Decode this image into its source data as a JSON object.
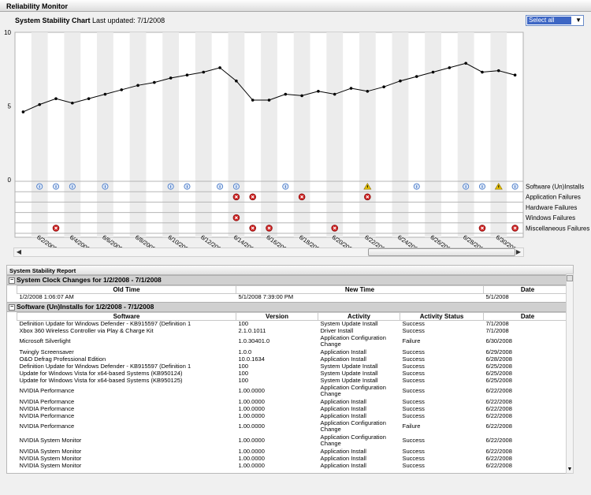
{
  "window": {
    "title": "Reliability Monitor"
  },
  "chart_header": {
    "title": "System Stability Chart",
    "updated": "Last updated: 7/1/2008"
  },
  "select_all": {
    "label": "Select all"
  },
  "report": {
    "title": "System Stability Report",
    "clock_group": {
      "title": "System Clock Changes for 1/2/2008 - 7/1/2008",
      "columns": [
        "Old Time",
        "New Time",
        "Date"
      ],
      "rows": [
        [
          "1/2/2008 1:06:07 AM",
          "5/1/2008 7:39:00 PM",
          "5/1/2008"
        ]
      ]
    },
    "software_group": {
      "title": "Software (Un)Installs for 1/2/2008 - 7/1/2008",
      "columns": [
        "Software",
        "Version",
        "Activity",
        "Activity Status",
        "Date"
      ],
      "rows": [
        [
          "Definition Update for Windows Defender - KB915597 (Definition 1",
          "100",
          "System Update Install",
          "Success",
          "7/1/2008"
        ],
        [
          "Xbox 360 Wireless Controller via Play & Charge Kit",
          "2.1.0.1011",
          "Driver Install",
          "Success",
          "7/1/2008"
        ],
        [
          "Microsoft Silverlight",
          "1.0.30401.0",
          "Application Configuration Change",
          "Failure",
          "6/30/2008"
        ],
        [
          "Twingly Screensaver",
          "1.0.0",
          "Application Install",
          "Success",
          "6/29/2008"
        ],
        [
          "O&O Defrag Professional Edition",
          "10.0.1634",
          "Application Install",
          "Success",
          "6/28/2008"
        ],
        [
          "Definition Update for Windows Defender - KB915597 (Definition 1",
          "100",
          "System Update Install",
          "Success",
          "6/25/2008"
        ],
        [
          "Update for Windows Vista for x64-based Systems (KB950124)",
          "100",
          "System Update Install",
          "Success",
          "6/25/2008"
        ],
        [
          "Update for Windows Vista for x64-based Systems (KB950125)",
          "100",
          "System Update Install",
          "Success",
          "6/25/2008"
        ],
        [
          "NVIDIA Performance",
          "1.00.0000",
          "Application Configuration Change",
          "Success",
          "6/22/2008"
        ],
        [
          "NVIDIA Performance",
          "1.00.0000",
          "Application Install",
          "Success",
          "6/22/2008"
        ],
        [
          "NVIDIA Performance",
          "1.00.0000",
          "Application Install",
          "Success",
          "6/22/2008"
        ],
        [
          "NVIDIA Performance",
          "1.00.0000",
          "Application Install",
          "Success",
          "6/22/2008"
        ],
        [
          "NVIDIA Performance",
          "1.00.0000",
          "Application Configuration Change",
          "Failure",
          "6/22/2008"
        ],
        [
          "NVIDIA System Monitor",
          "1.00.0000",
          "Application Configuration Change",
          "Success",
          "6/22/2008"
        ],
        [
          "NVIDIA System Monitor",
          "1.00.0000",
          "Application Install",
          "Success",
          "6/22/2008"
        ],
        [
          "NVIDIA System Monitor",
          "1.00.0000",
          "Application Install",
          "Success",
          "6/22/2008"
        ],
        [
          "NVIDIA System Monitor",
          "1.00.0000",
          "Application Install",
          "Success",
          "6/22/2008"
        ]
      ]
    }
  },
  "chart_data": {
    "type": "line",
    "title": "System Stability Chart",
    "ylim": [
      0,
      10
    ],
    "yticks": [
      "0",
      "5",
      "10"
    ],
    "x_tick_labels": [
      "6/2/2008",
      "6/4/2008",
      "6/6/2008",
      "6/8/2008",
      "6/10/2008",
      "6/12/2008",
      "6/14/2008",
      "6/16/2008",
      "6/18/2008",
      "6/20/2008",
      "6/22/2008",
      "6/24/2008",
      "6/26/2008",
      "6/28/2008",
      "6/30/2008"
    ],
    "x_start": "6/1/2008",
    "stability_index": [
      4.6,
      5.1,
      5.5,
      5.2,
      5.5,
      5.8,
      6.1,
      6.4,
      6.6,
      6.9,
      7.1,
      7.3,
      7.6,
      6.7,
      5.4,
      5.4,
      5.8,
      5.7,
      6.0,
      5.8,
      6.2,
      6.0,
      6.3,
      6.7,
      7.0,
      7.3,
      7.6,
      7.9,
      7.3,
      7.4,
      7.1
    ],
    "event_rows": [
      "Software (Un)Installs",
      "Application Failures",
      "Hardware Failures",
      "Windows Failures",
      "Miscellaneous Failures"
    ],
    "events": {
      "Software (Un)Installs": [
        {
          "day": 1,
          "kind": "info"
        },
        {
          "day": 2,
          "kind": "info"
        },
        {
          "day": 3,
          "kind": "info"
        },
        {
          "day": 5,
          "kind": "info"
        },
        {
          "day": 9,
          "kind": "info"
        },
        {
          "day": 10,
          "kind": "info"
        },
        {
          "day": 12,
          "kind": "info"
        },
        {
          "day": 13,
          "kind": "info"
        },
        {
          "day": 16,
          "kind": "info"
        },
        {
          "day": 21,
          "kind": "warning"
        },
        {
          "day": 24,
          "kind": "info"
        },
        {
          "day": 27,
          "kind": "info"
        },
        {
          "day": 28,
          "kind": "info"
        },
        {
          "day": 29,
          "kind": "warning"
        },
        {
          "day": 30,
          "kind": "info"
        }
      ],
      "Application Failures": [
        {
          "day": 13,
          "kind": "error"
        },
        {
          "day": 14,
          "kind": "error"
        },
        {
          "day": 17,
          "kind": "error"
        },
        {
          "day": 21,
          "kind": "error"
        }
      ],
      "Hardware Failures": [],
      "Windows Failures": [
        {
          "day": 13,
          "kind": "error"
        }
      ],
      "Miscellaneous Failures": [
        {
          "day": 2,
          "kind": "error"
        },
        {
          "day": 14,
          "kind": "error"
        },
        {
          "day": 15,
          "kind": "error"
        },
        {
          "day": 19,
          "kind": "error"
        },
        {
          "day": 28,
          "kind": "error"
        },
        {
          "day": 30,
          "kind": "error"
        }
      ]
    },
    "colors": {
      "line": "#000000",
      "error": "#cc1f1f",
      "warning": "#e8c400",
      "info": "#3a6fc2"
    }
  }
}
